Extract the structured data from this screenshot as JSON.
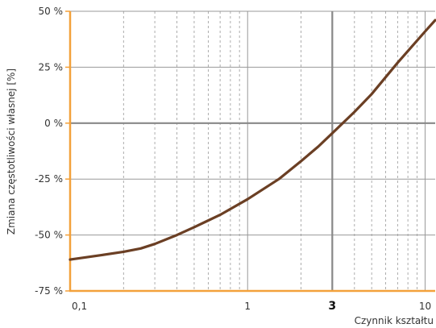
{
  "chart_data": {
    "type": "line",
    "xlabel": "Czynnik kształtu",
    "ylabel": "Zmiana częstotliwości własnej [%]",
    "x_scale": "log",
    "xlim": [
      0.1,
      11.4
    ],
    "ylim": [
      -75,
      50
    ],
    "x_ticks": [
      {
        "value": 0.1,
        "label": "0,1",
        "bold": false
      },
      {
        "value": 1,
        "label": "1",
        "bold": false
      },
      {
        "value": 3,
        "label": "3",
        "bold": true
      },
      {
        "value": 10,
        "label": "10",
        "bold": false
      }
    ],
    "y_ticks": [
      {
        "value": 50,
        "label": "50 %"
      },
      {
        "value": 25,
        "label": "25 %"
      },
      {
        "value": 0,
        "label": "0 %"
      },
      {
        "value": -25,
        "label": "-25 %"
      },
      {
        "value": -50,
        "label": "-50 %"
      },
      {
        "value": -75,
        "label": "-75 %"
      }
    ],
    "reference_lines": {
      "x": 3,
      "y": 0
    },
    "grid": true,
    "colors": {
      "line": "#6b3f24",
      "axis": "#f3a13b",
      "reference": "#888888",
      "grid": "#999999"
    },
    "series": [
      {
        "x": [
          0.1,
          0.15,
          0.2,
          0.25,
          0.3,
          0.4,
          0.5,
          0.7,
          1.0,
          1.5,
          2.0,
          2.5,
          3.0,
          4.0,
          5.0,
          7.0,
          10.0,
          11.4
        ],
        "y": [
          -61,
          -59,
          -57.5,
          -56,
          -54,
          -50,
          -46.5,
          -41,
          -34,
          -25,
          -17,
          -10.5,
          -4.5,
          5,
          13,
          27,
          41,
          46
        ]
      }
    ]
  }
}
